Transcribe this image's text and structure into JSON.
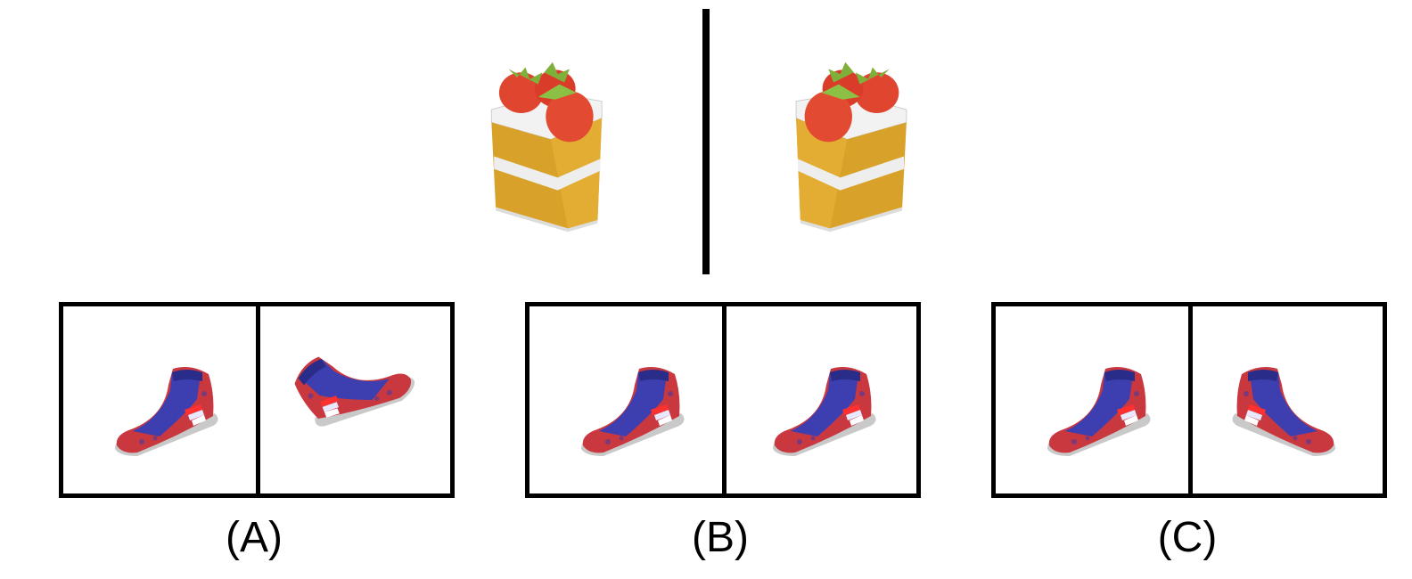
{
  "options": [
    {
      "label": "(A)"
    },
    {
      "label": "(B)"
    },
    {
      "label": "(C)"
    }
  ],
  "icons": {
    "reference_left": "strawberry-cake-icon",
    "reference_right": "strawberry-cake-mirrored-icon",
    "option_object": "sneaker-icon"
  },
  "colors": {
    "cake_sponge": "#d9a22a",
    "cake_cream": "#eeeeee",
    "strawberry": "#e0452f",
    "leaf": "#7fb03a",
    "shoe_red": "#c9383f",
    "shoe_blue": "#3d3fb0",
    "sole": "#cccccc"
  }
}
